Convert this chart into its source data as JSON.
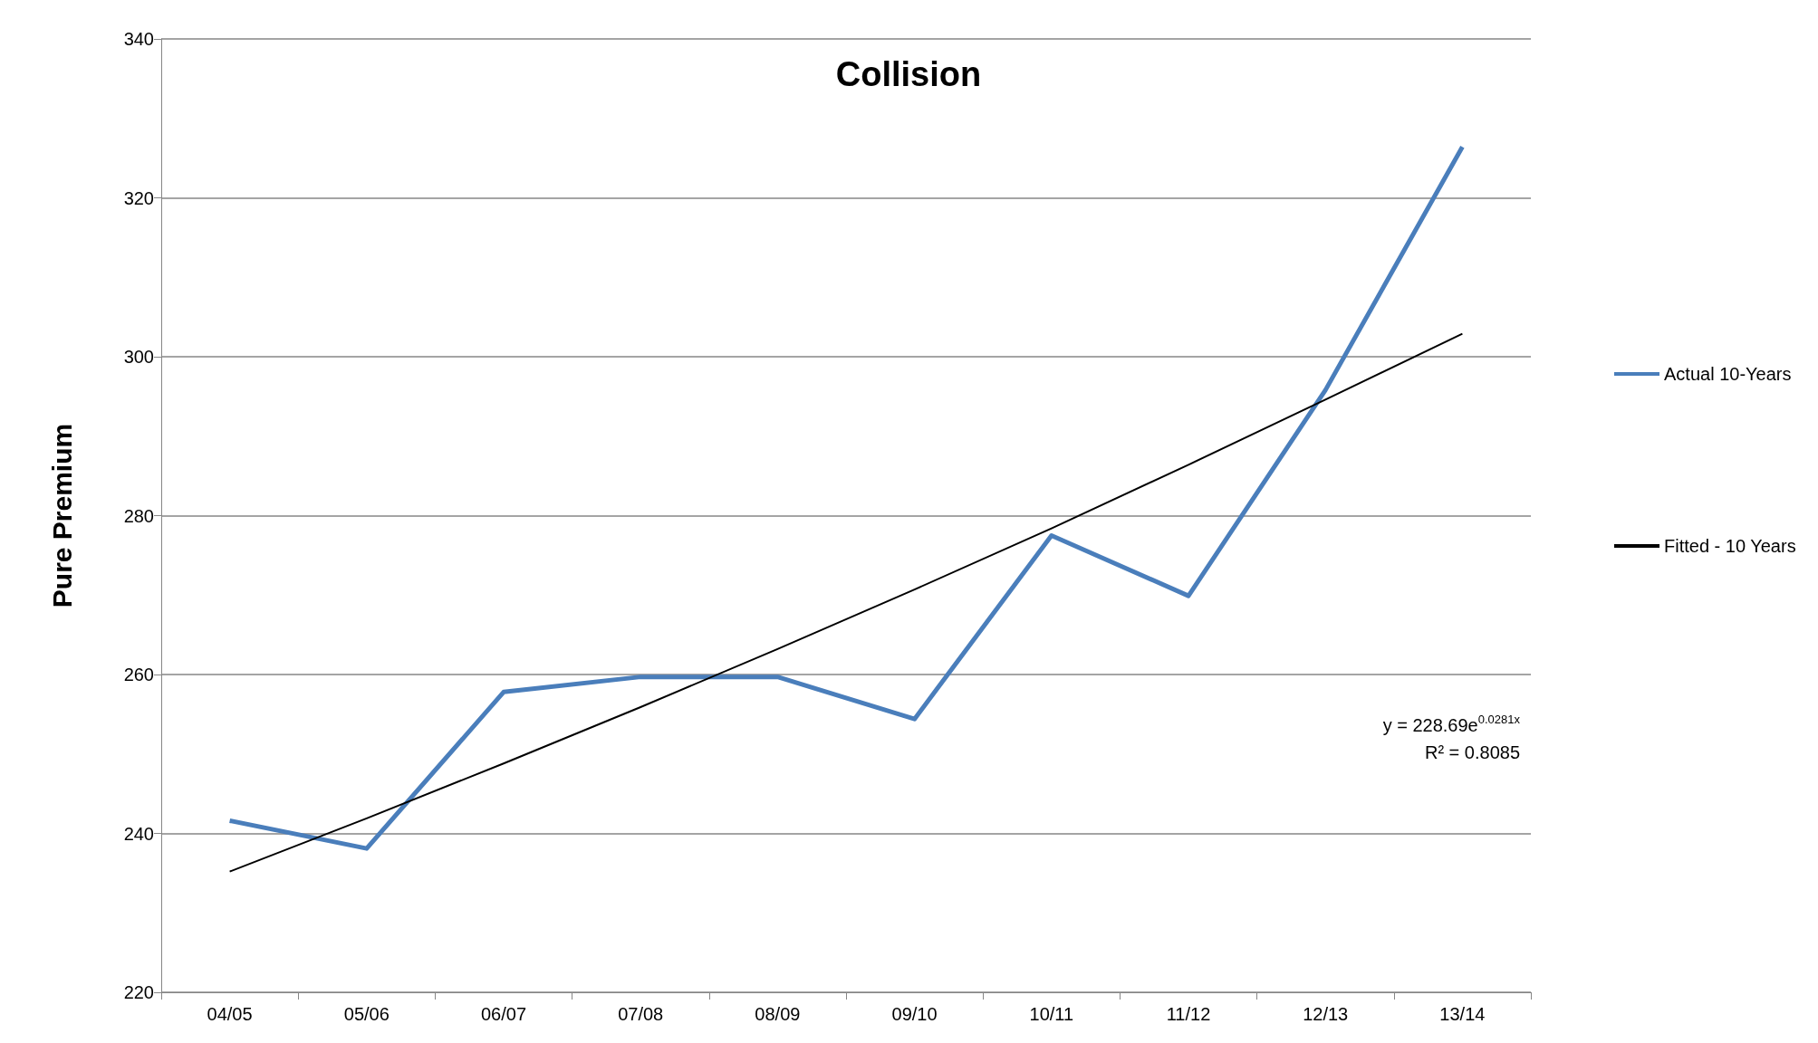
{
  "chart_data": {
    "type": "line",
    "title": "Collision",
    "ylabel": "Pure Premium",
    "categories": [
      "04/05",
      "05/06",
      "06/07",
      "07/08",
      "08/09",
      "09/10",
      "10/11",
      "11/12",
      "12/13",
      "13/14"
    ],
    "series": [
      {
        "name": "Actual 10-Years",
        "color": "#4a7ebb",
        "values": [
          241.6,
          238.1,
          257.8,
          259.7,
          259.7,
          254.4,
          277.5,
          269.9,
          295.8,
          326.4
        ]
      },
      {
        "name": "Fitted - 10 Years",
        "color": "#000000",
        "values": [
          235.2,
          241.9,
          248.8,
          255.9,
          263.2,
          270.7,
          278.4,
          286.4,
          294.6,
          302.9
        ]
      }
    ],
    "ylim": [
      220,
      340
    ],
    "yticks": [
      220,
      240,
      260,
      280,
      300,
      320,
      340
    ],
    "grid": "y",
    "legend": "right",
    "marker": "none",
    "annotations": [
      "y = 228.69e$^{0.0281x}$",
      "R² = 0.8085"
    ]
  }
}
